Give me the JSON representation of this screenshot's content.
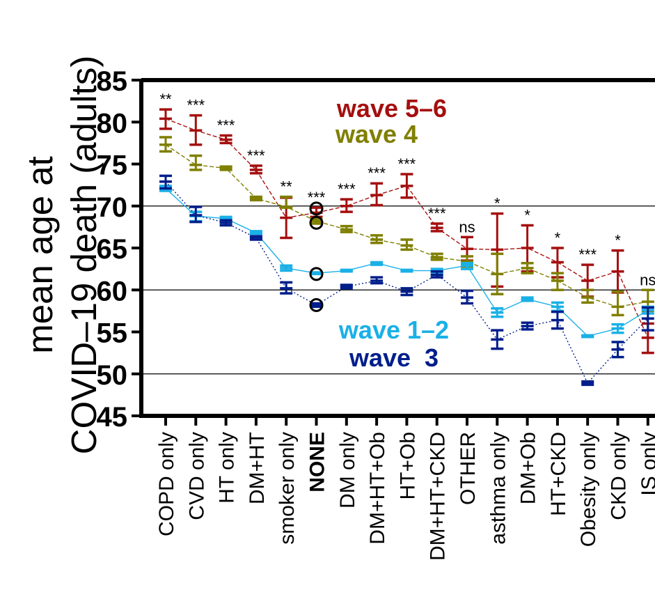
{
  "chart_data": {
    "type": "line",
    "ylabel_line1": "mean age at",
    "ylabel_line2": "COVID–19 death (adults)",
    "ylim": [
      45,
      85
    ],
    "yticks": [
      45,
      50,
      55,
      60,
      65,
      70,
      75,
      80,
      85
    ],
    "gridlines": [
      50,
      60,
      70
    ],
    "categories": [
      "COPD only",
      "CVD only",
      "HT only",
      "DM+HT",
      "smoker only",
      "NONE",
      "DM only",
      "DM+HT+Ob",
      "HT+Ob",
      "DM+HT+CKD",
      "OTHER",
      "asthma only",
      "DM+Ob",
      "HT+CKD",
      "Obesity only",
      "CKD only",
      "IS only"
    ],
    "bold_category": "NONE",
    "significance": [
      "**",
      "***",
      "***",
      "***",
      "**",
      "***",
      "***",
      "***",
      "***",
      "***",
      "ns",
      "*",
      "*",
      "*",
      "***",
      "*",
      "ns"
    ],
    "series": [
      {
        "name": "wave 5–6",
        "color": "#a50f0f",
        "mean": [
          80.4,
          79.0,
          77.9,
          74.3,
          68.6,
          69.2,
          70.0,
          71.3,
          72.4,
          67.4,
          64.9,
          64.8,
          65.0,
          63.3,
          61.1,
          62.2,
          54.3
        ],
        "low": [
          79.2,
          77.3,
          77.5,
          73.9,
          66.2,
          68.7,
          69.3,
          70.1,
          71.0,
          67.0,
          63.5,
          60.4,
          62.2,
          61.5,
          59.2,
          59.7,
          52.5
        ],
        "high": [
          81.5,
          80.8,
          78.4,
          74.8,
          71.0,
          69.8,
          70.8,
          72.7,
          73.8,
          67.9,
          66.3,
          69.1,
          67.7,
          65.0,
          63.0,
          64.7,
          56.0
        ]
      },
      {
        "name": "wave 4",
        "color": "#7f7f00",
        "mean": [
          77.3,
          74.9,
          74.5,
          70.9,
          69.9,
          68.2,
          67.2,
          66.0,
          65.3,
          63.9,
          63.4,
          61.9,
          62.6,
          61.1,
          59.1,
          58.0,
          58.6
        ],
        "low": [
          76.5,
          74.3,
          74.3,
          70.7,
          69.8,
          67.9,
          66.9,
          65.6,
          64.8,
          63.6,
          62.8,
          59.5,
          62.0,
          60.0,
          58.5,
          57.0,
          57.5
        ],
        "high": [
          78.2,
          76.0,
          74.7,
          71.1,
          71.1,
          68.5,
          67.6,
          66.5,
          66.0,
          64.3,
          64.0,
          64.3,
          63.2,
          62.0,
          60.0,
          59.8,
          60.0
        ]
      },
      {
        "name": "wave 1–2",
        "color": "#1ab0e6",
        "mean": [
          72.1,
          68.8,
          68.5,
          66.8,
          62.6,
          62.0,
          62.3,
          63.2,
          62.3,
          62.3,
          62.9,
          57.3,
          58.9,
          58.0,
          54.5,
          55.4,
          57.6
        ],
        "low": [
          71.8,
          68.2,
          68.3,
          66.7,
          62.3,
          61.9,
          62.2,
          63.0,
          62.2,
          62.1,
          62.5,
          56.8,
          58.7,
          57.5,
          54.4,
          54.9,
          57.2
        ],
        "high": [
          72.4,
          69.3,
          68.7,
          67.0,
          62.9,
          62.1,
          62.4,
          63.3,
          62.4,
          62.5,
          63.2,
          57.8,
          59.1,
          58.5,
          54.6,
          55.9,
          58.0
        ]
      },
      {
        "name": "wave  3",
        "color": "#001e8c",
        "mean": [
          72.9,
          68.9,
          68.0,
          66.2,
          60.2,
          58.2,
          60.4,
          61.1,
          59.8,
          61.8,
          59.1,
          54.1,
          55.7,
          56.4,
          48.9,
          52.9,
          56.6
        ],
        "low": [
          72.1,
          68.1,
          67.7,
          66.0,
          59.6,
          58.0,
          60.2,
          60.8,
          59.4,
          61.5,
          58.4,
          53.0,
          55.3,
          55.4,
          48.7,
          52.0,
          55.2
        ],
        "high": [
          73.6,
          69.9,
          68.3,
          66.4,
          60.9,
          58.4,
          60.6,
          61.5,
          60.2,
          62.2,
          59.9,
          55.2,
          56.1,
          57.4,
          49.1,
          53.8,
          57.9
        ]
      }
    ],
    "circle_markers": [
      {
        "category": "NONE",
        "y": 69.7
      },
      {
        "category": "NONE",
        "y": 68.0
      },
      {
        "category": "NONE",
        "y": 61.9
      },
      {
        "category": "NONE",
        "y": 58.2
      }
    ]
  }
}
